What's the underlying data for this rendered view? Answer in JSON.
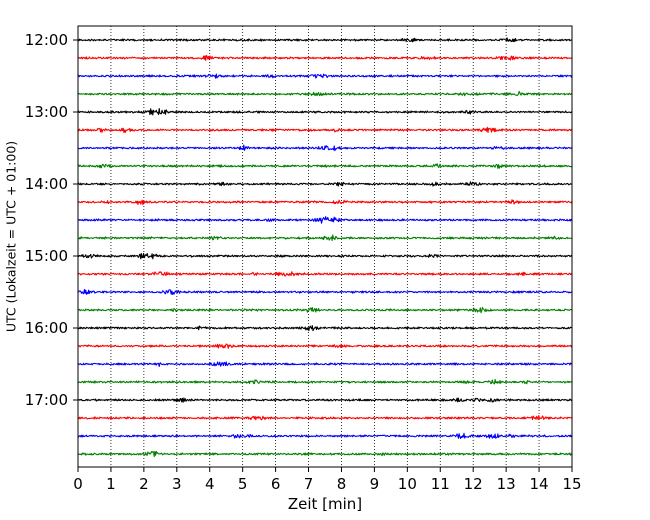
{
  "chart_data": {
    "type": "line",
    "title": "",
    "xlabel": "Zeit  [min]",
    "ylabel": "UTC (Lokalzeit = UTC + 01:00)",
    "xlim": [
      0,
      15
    ],
    "x_ticks": [
      0,
      1,
      2,
      3,
      4,
      5,
      6,
      7,
      8,
      9,
      10,
      11,
      12,
      13,
      14,
      15
    ],
    "y_tick_labels": [
      "12:00",
      "13:00",
      "14:00",
      "15:00",
      "16:00",
      "17:00"
    ],
    "y_tick_rows": [
      0,
      4,
      8,
      12,
      16,
      20
    ],
    "row_start_times": [
      "12:00",
      "12:15",
      "12:30",
      "12:45",
      "13:00",
      "13:15",
      "13:30",
      "13:45",
      "14:00",
      "14:15",
      "14:30",
      "14:45",
      "15:00",
      "15:15",
      "15:30",
      "15:45",
      "16:00",
      "16:15",
      "16:30",
      "16:45",
      "17:00",
      "17:15",
      "17:30",
      "17:45"
    ],
    "row_minutes_per_trace": 15,
    "grid": "vertical dotted",
    "trace_colors": [
      "#000000",
      "#ff0000",
      "#0000ff",
      "#008000"
    ],
    "signal": "continuous seismic noise trace, roughly constant amplitude, occasional short bursts"
  }
}
